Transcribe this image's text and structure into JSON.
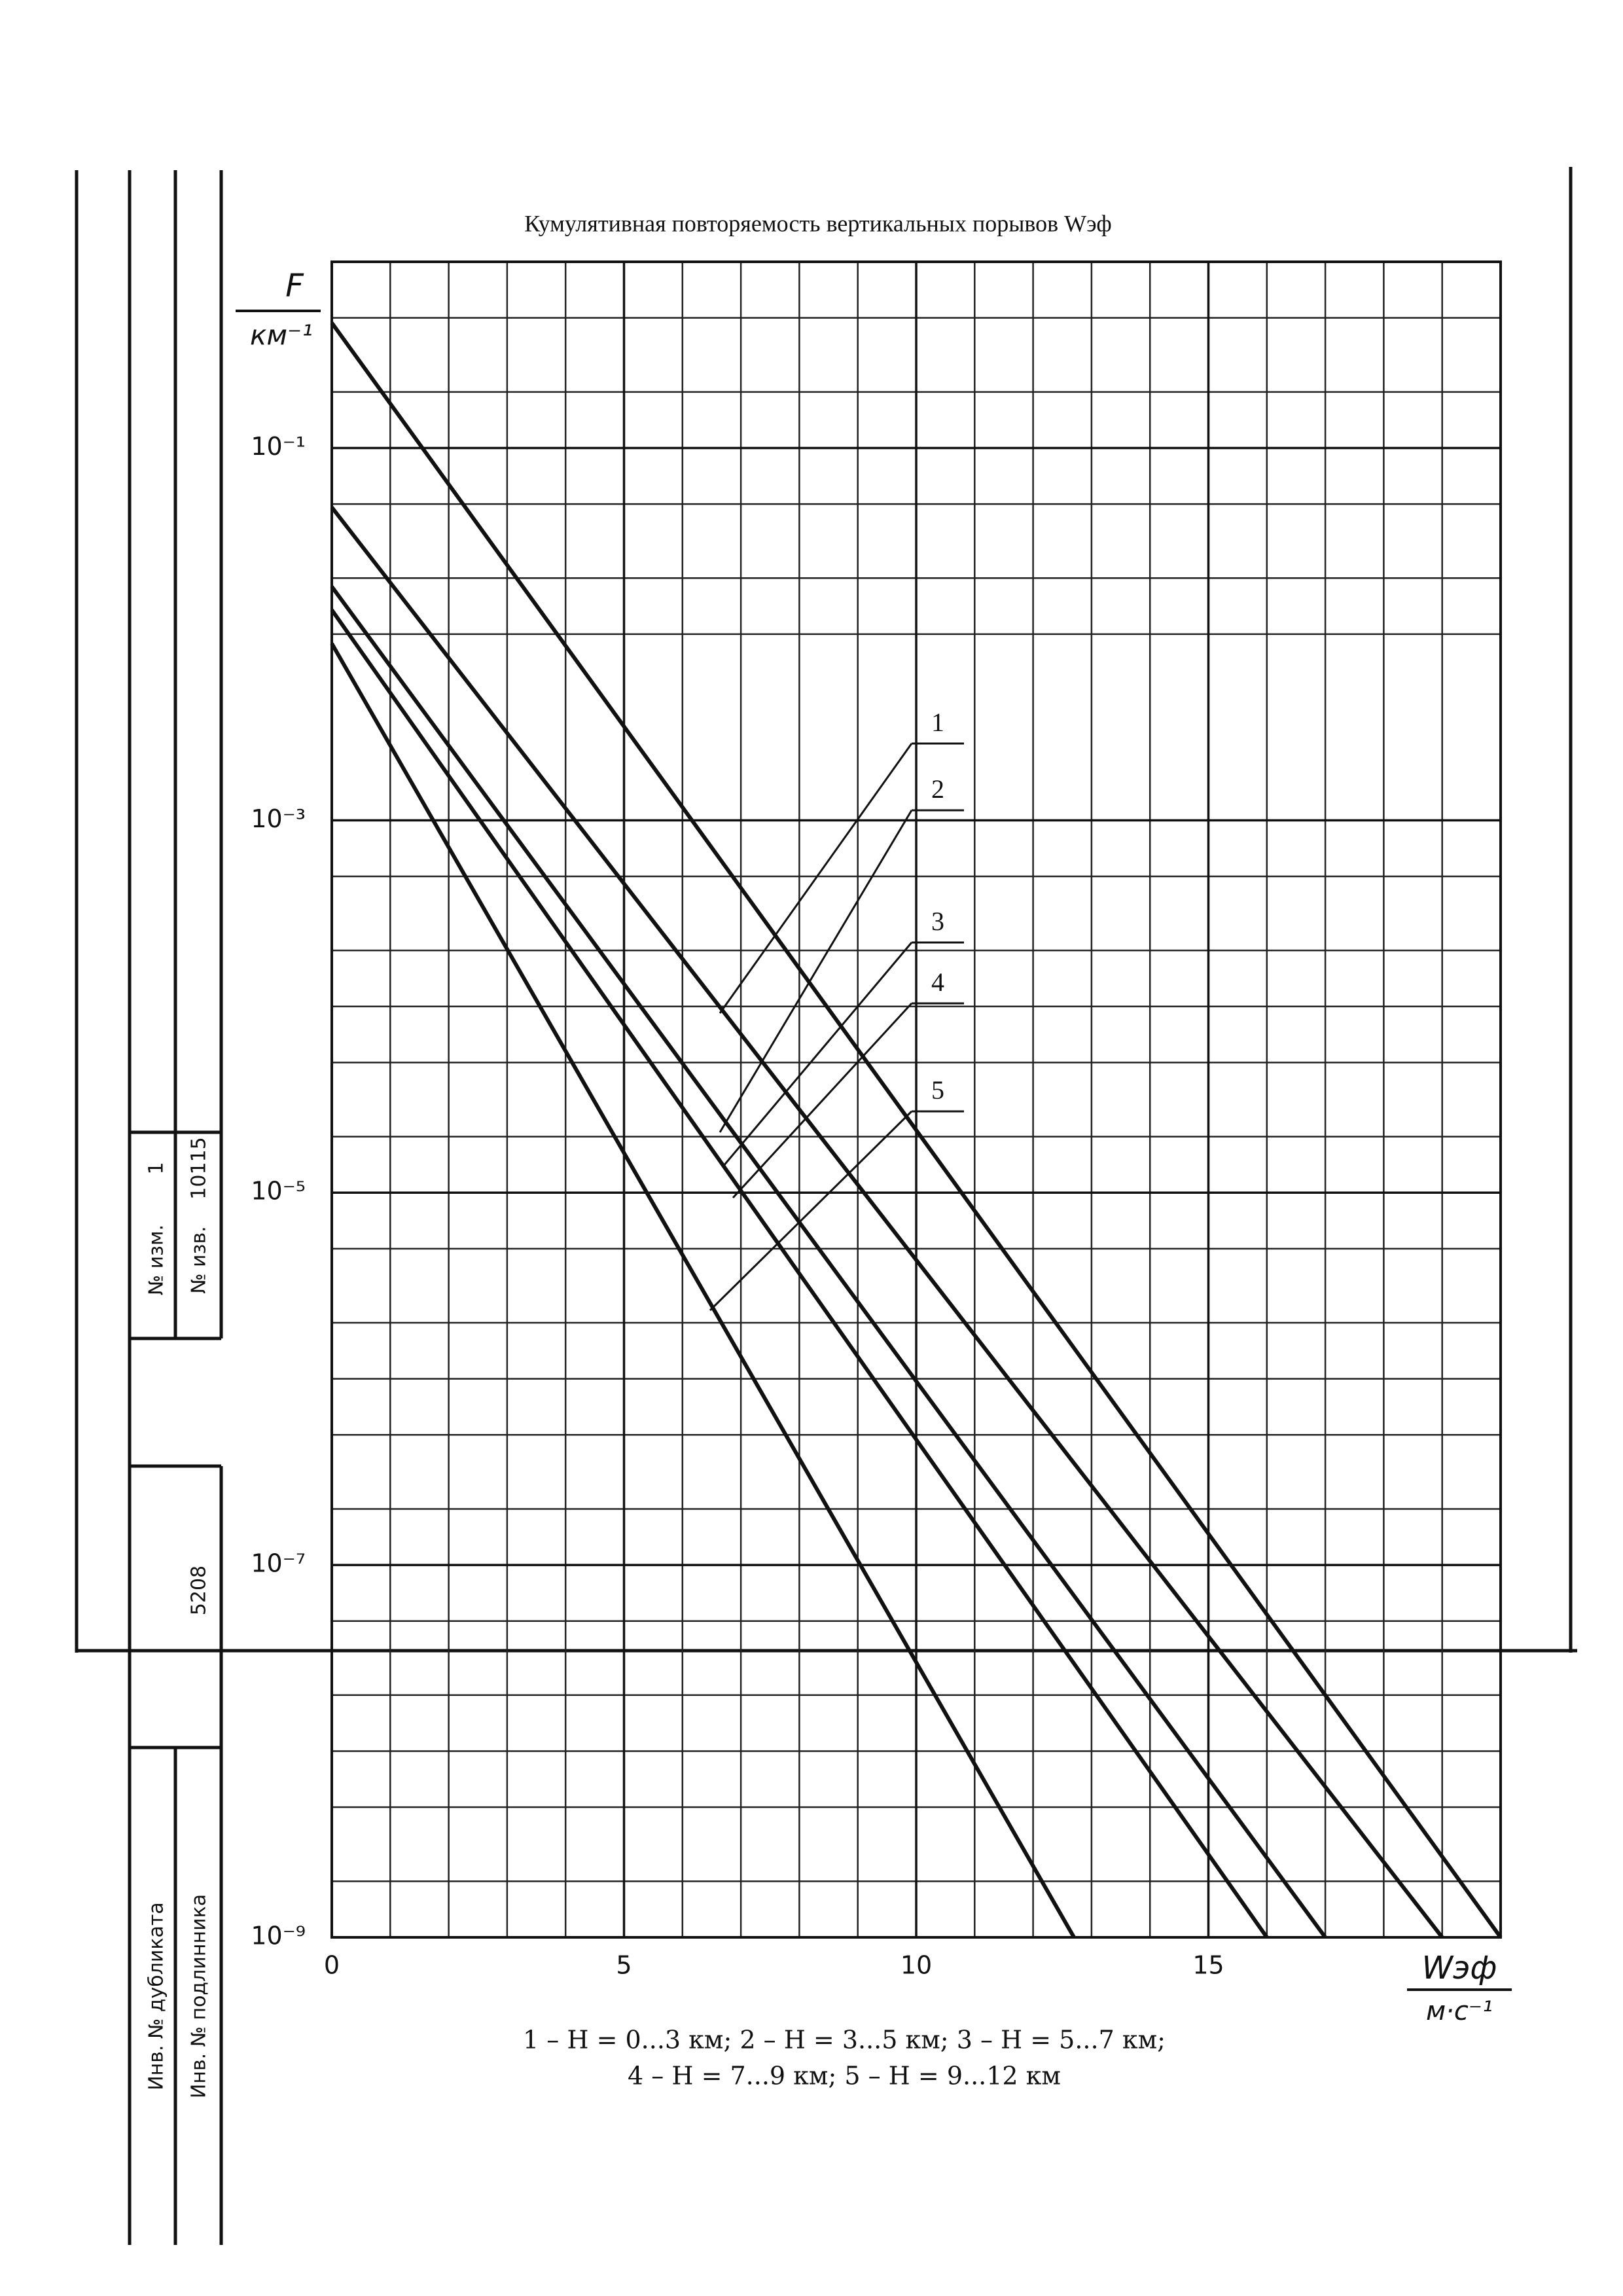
{
  "chart_data": {
    "type": "line",
    "title": "Кумулятивная повторяемость вертикальных порывов Wэф",
    "y_label": "F",
    "y_unit": "км⁻¹",
    "x_label": "Wэф",
    "x_unit": "м·с⁻¹",
    "log_y": true,
    "grid": true,
    "color": "#111111",
    "xlim": [
      0,
      20
    ],
    "xticks": [
      0,
      5,
      10,
      15
    ],
    "x_minor_ticks": [
      1,
      2,
      3,
      4,
      6,
      7,
      8,
      9,
      11,
      12,
      13,
      14,
      16,
      17,
      18,
      19,
      20
    ],
    "ylim": [
      1e-09,
      1
    ],
    "yticks": [
      {
        "value": 0.1,
        "label": "10⁻¹"
      },
      {
        "value": 0.001,
        "label": "10⁻³"
      },
      {
        "value": 1e-05,
        "label": "10⁻⁵"
      },
      {
        "value": 1e-07,
        "label": "10⁻⁷"
      },
      {
        "value": 1e-09,
        "label": "10⁻⁹"
      }
    ],
    "y_minor_ticks": [
      0.5,
      0.2,
      0.01,
      0.05,
      0.02,
      0.0005,
      0.0002,
      0.0001,
      5e-05,
      2e-05,
      5e-06,
      2e-06,
      1e-06,
      5e-07,
      2e-07,
      5e-08,
      2e-08,
      1e-08,
      5e-09,
      2e-09
    ],
    "series": [
      {
        "name": "1",
        "x": [
          0,
          20
        ],
        "values": [
          0.47,
          1e-09
        ]
      },
      {
        "name": "2",
        "x": [
          0,
          19
        ],
        "values": [
          0.048,
          1e-09
        ]
      },
      {
        "name": "3",
        "x": [
          0,
          17
        ],
        "values": [
          0.018,
          1e-09
        ]
      },
      {
        "name": "4",
        "x": [
          0,
          16
        ],
        "values": [
          0.0135,
          1e-09
        ]
      },
      {
        "name": "5",
        "x": [
          0,
          12.7
        ],
        "values": [
          0.0089,
          1e-09
        ]
      }
    ],
    "caption": [
      "1 – H = 0...3 км; 2 – H = 3...5 км; 3 – H = 5...7 км;",
      "4 – H = 7...9 км; 5 – H = 9...12 км"
    ]
  },
  "stamp": {
    "inv_duplicate": "Инв. № дубликата",
    "inv_original": "Инв. № подлинника",
    "original_no": "5208",
    "change_label": "№ изм.",
    "change_no": "1",
    "notice_label": "№ изв.",
    "notice_no": "10115"
  }
}
